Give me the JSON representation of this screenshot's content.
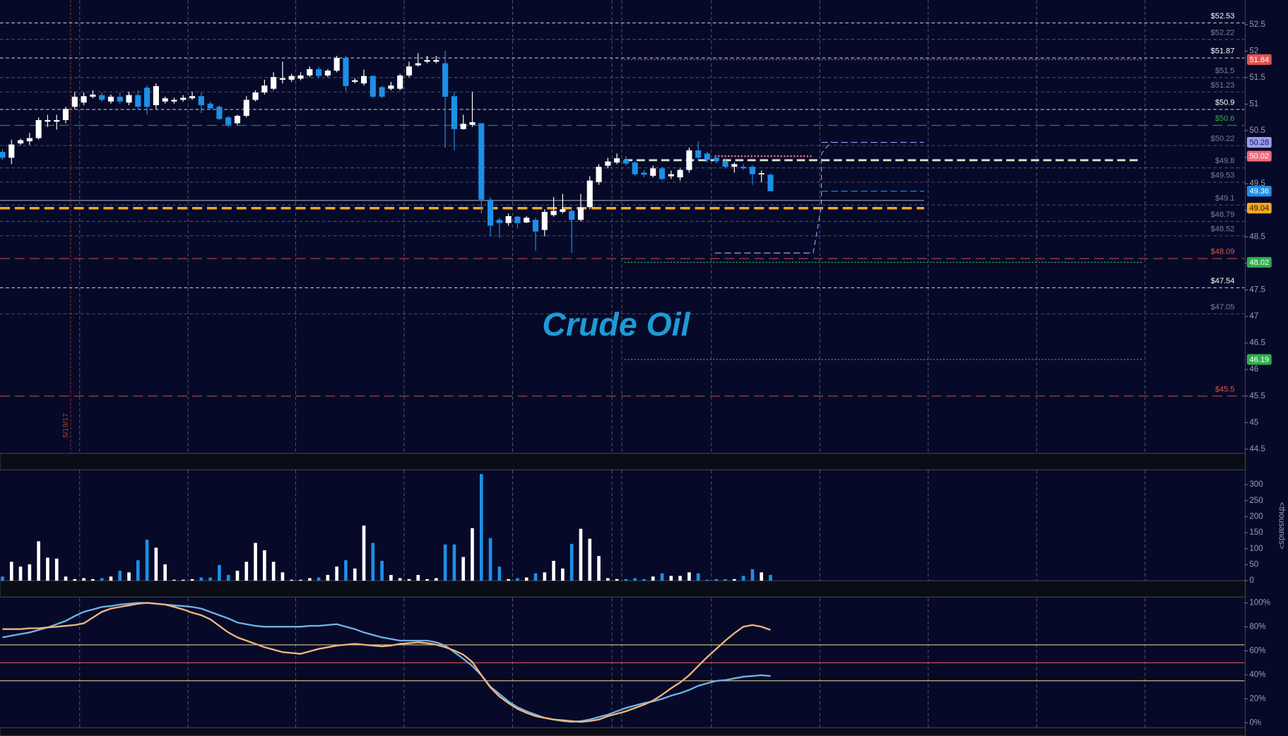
{
  "chart_data": [
    {
      "type": "candlestick",
      "title": "Crude Oil",
      "annotation": "5/19/17",
      "categories": [
        null,
        null,
        null,
        null,
        null,
        null,
        null,
        null,
        null,
        null,
        null,
        null,
        null,
        null,
        null,
        null,
        null,
        null,
        null,
        null,
        null,
        null,
        null,
        null,
        null,
        null,
        null,
        null,
        null,
        null,
        null,
        null,
        null,
        null,
        null,
        null,
        null,
        null,
        null,
        null,
        null,
        null,
        null,
        null,
        null,
        null,
        null,
        null,
        null,
        null,
        null,
        null,
        null,
        null,
        null,
        null,
        null,
        null,
        null,
        null,
        null,
        null,
        null,
        null,
        null,
        null,
        null,
        null,
        null,
        null,
        null,
        null,
        null,
        null,
        null,
        null,
        null,
        null,
        null,
        null,
        null,
        null,
        null,
        null,
        null,
        null
      ],
      "open": [
        50.1,
        49.99,
        50.26,
        50.3,
        50.36,
        50.67,
        50.67,
        50.7,
        50.95,
        51.03,
        51.14,
        51.17,
        51.05,
        51.14,
        51.03,
        51.17,
        51.31,
        50.98,
        51.05,
        51.05,
        51.08,
        51.11,
        51.15,
        51.01,
        50.95,
        50.75,
        50.64,
        50.78,
        51.08,
        51.22,
        51.29,
        51.46,
        51.46,
        51.48,
        51.54,
        51.66,
        51.54,
        51.63,
        51.87,
        51.42,
        51.39,
        51.53,
        51.32,
        51.29,
        51.29,
        51.54,
        51.73,
        51.8,
        51.8,
        51.77,
        51.15,
        50.53,
        50.61,
        50.64,
        49.2,
        48.82,
        48.76,
        48.88,
        48.77,
        48.82,
        48.63,
        48.91,
        48.97,
        48.99,
        48.82,
        49.06,
        49.53,
        49.84,
        49.9,
        49.95,
        49.9,
        49.71,
        49.65,
        49.79,
        49.64,
        49.62,
        49.76,
        50.13,
        50.07,
        49.99,
        49.93,
        49.82,
        49.82,
        49.82,
        49.68,
        49.67
      ],
      "high": [
        50.15,
        50.33,
        50.35,
        50.46,
        50.75,
        50.8,
        50.8,
        50.95,
        51.23,
        51.22,
        51.26,
        51.22,
        51.18,
        51.22,
        51.23,
        51.26,
        51.35,
        51.39,
        51.14,
        51.12,
        51.17,
        51.23,
        51.22,
        51.05,
        50.98,
        50.78,
        50.8,
        51.15,
        51.26,
        51.46,
        51.6,
        51.8,
        51.57,
        51.6,
        51.71,
        51.71,
        51.66,
        51.91,
        51.91,
        51.49,
        51.65,
        51.54,
        51.35,
        51.42,
        51.57,
        51.8,
        51.96,
        51.91,
        51.91,
        52.0,
        51.23,
        50.8,
        51.23,
        50.64,
        49.25,
        48.86,
        48.94,
        48.89,
        48.89,
        48.86,
        49.02,
        49.25,
        49.31,
        49.02,
        49.31,
        49.64,
        49.87,
        49.99,
        50.07,
        50.02,
        49.93,
        49.76,
        49.84,
        49.82,
        49.75,
        49.79,
        50.18,
        50.3,
        50.1,
        50.02,
        49.98,
        49.9,
        49.87,
        49.85,
        49.75,
        49.7
      ],
      "low": [
        49.95,
        49.87,
        50.23,
        50.23,
        50.33,
        50.57,
        50.52,
        50.64,
        50.91,
        50.98,
        51.11,
        51.05,
        51.01,
        51.01,
        50.98,
        50.91,
        50.8,
        50.91,
        51.01,
        51.01,
        51.05,
        51.08,
        50.83,
        50.91,
        50.7,
        50.57,
        50.61,
        50.75,
        51.05,
        51.18,
        51.26,
        51.39,
        51.42,
        51.45,
        51.51,
        51.49,
        51.51,
        51.6,
        51.25,
        51.39,
        51.35,
        51.11,
        51.11,
        51.26,
        51.26,
        51.51,
        51.71,
        51.77,
        51.77,
        50.18,
        50.13,
        50.52,
        50.57,
        48.94,
        48.51,
        48.48,
        48.71,
        48.66,
        48.76,
        48.24,
        48.51,
        48.88,
        48.94,
        48.2,
        48.79,
        49.02,
        49.48,
        49.79,
        49.87,
        49.84,
        49.65,
        49.62,
        49.62,
        49.56,
        49.59,
        49.56,
        49.71,
        49.95,
        49.9,
        49.88,
        49.79,
        49.71,
        49.76,
        49.48,
        49.53,
        49.36
      ],
      "close": [
        49.99,
        50.24,
        50.32,
        50.36,
        50.7,
        50.7,
        50.7,
        50.91,
        51.14,
        51.15,
        51.18,
        51.08,
        51.14,
        51.05,
        51.17,
        50.95,
        50.95,
        51.34,
        51.11,
        51.08,
        51.12,
        51.15,
        50.98,
        50.92,
        50.72,
        50.61,
        50.78,
        51.08,
        51.22,
        51.35,
        51.51,
        51.49,
        51.53,
        51.54,
        51.66,
        51.53,
        51.63,
        51.87,
        51.34,
        51.45,
        51.53,
        51.14,
        51.14,
        51.35,
        51.54,
        51.71,
        51.77,
        51.83,
        51.83,
        51.14,
        50.53,
        50.63,
        50.66,
        49.2,
        48.71,
        48.76,
        48.89,
        48.76,
        48.86,
        48.6,
        48.97,
        48.99,
        49.02,
        48.82,
        49.05,
        49.56,
        49.82,
        49.92,
        49.98,
        49.88,
        49.68,
        49.67,
        49.79,
        49.59,
        49.68,
        49.76,
        50.13,
        49.99,
        49.95,
        49.93,
        49.82,
        49.87,
        49.79,
        49.68,
        49.7,
        49.36
      ],
      "up_color": "#ffffff",
      "down_color": "#1e8fe6",
      "ylim": [
        44.42,
        52.96
      ],
      "yticks": [
        44.5,
        45,
        45.5,
        46,
        46.5,
        47,
        47.5,
        48,
        48.5,
        49,
        49.5,
        50,
        50.5,
        51,
        51.5,
        52,
        52.5
      ],
      "grid": true,
      "levels": [
        {
          "value": 52.53,
          "label": "$52.53",
          "color": "#ffffff"
        },
        {
          "value": 52.22,
          "label": "$52.22",
          "color": "#7c7f93"
        },
        {
          "value": 51.87,
          "label": "$51.87",
          "color": "#ffffff"
        },
        {
          "value": 51.5,
          "label": "$51.5",
          "color": "#7c7f93"
        },
        {
          "value": 51.23,
          "label": "$51.23",
          "color": "#7c7f93"
        },
        {
          "value": 50.9,
          "label": "$50.9",
          "color": "#ffffff"
        },
        {
          "value": 50.6,
          "label": "$50.6",
          "color": "#2fae4e"
        },
        {
          "value": 50.22,
          "label": "$50.22",
          "color": "#7c7f93"
        },
        {
          "value": 49.8,
          "label": "$49.8",
          "color": "#7c7f93"
        },
        {
          "value": 49.53,
          "label": "$49.53",
          "color": "#7c7f93"
        },
        {
          "value": 49.1,
          "label": "$49.1",
          "color": "#7c7f93"
        },
        {
          "value": 48.79,
          "label": "$48.79",
          "color": "#7c7f93"
        },
        {
          "value": 48.52,
          "label": "$48.52",
          "color": "#7c7f93"
        },
        {
          "value": 48.09,
          "label": "$48.09",
          "color": "#e0534f"
        },
        {
          "value": 47.54,
          "label": "$47.54",
          "color": "#ffffff"
        },
        {
          "value": 47.05,
          "label": "$47.05",
          "color": "#7c7f93"
        },
        {
          "value": 45.5,
          "label": "$45.5",
          "color": "#e0534f"
        }
      ],
      "markers": [
        {
          "value": 51.84,
          "color": "#e0534f",
          "text_color": "#ffffff"
        },
        {
          "value": 50.28,
          "color": "#9a9cf0",
          "text_color": "#1a1c40"
        },
        {
          "value": 50.02,
          "color": "#f06a78",
          "text_color": "#ffffff"
        },
        {
          "value": 49.36,
          "color": "#1e8fe6",
          "text_color": "#ffffff"
        },
        {
          "value": 49.04,
          "color": "#f5a623",
          "text_color": "#1a1a1a"
        },
        {
          "value": 48.02,
          "color": "#2fae4e",
          "text_color": "#ffffff"
        },
        {
          "value": 46.19,
          "color": "#2fae4e",
          "text_color": "#ffffff"
        }
      ]
    },
    {
      "type": "bar",
      "y_label": "<thousands>",
      "categories": [
        null,
        null,
        null,
        null,
        null,
        null,
        null,
        null,
        null,
        null,
        null,
        null,
        null,
        null,
        null,
        null,
        null,
        null,
        null,
        null,
        null,
        null,
        null,
        null,
        null,
        null,
        null,
        null,
        null,
        null,
        null,
        null,
        null,
        null,
        null,
        null,
        null,
        null,
        null,
        null,
        null,
        null,
        null,
        null,
        null,
        null,
        null,
        null,
        null,
        null,
        null,
        null,
        null,
        null,
        null,
        null,
        null,
        null,
        null,
        null,
        null,
        null,
        null,
        null,
        null,
        null,
        null,
        null,
        null,
        null,
        null,
        null,
        null,
        null,
        null,
        null,
        null,
        null,
        null,
        null,
        null,
        null,
        null,
        null,
        null,
        null
      ],
      "values": [
        13,
        59,
        44,
        51,
        123,
        72,
        69,
        13,
        5,
        8,
        5,
        8,
        13,
        31,
        26,
        64,
        128,
        103,
        51,
        3,
        3,
        5,
        10,
        10,
        49,
        18,
        31,
        59,
        118,
        95,
        59,
        26,
        3,
        3,
        8,
        10,
        18,
        44,
        64,
        38,
        172,
        118,
        62,
        18,
        8,
        5,
        18,
        5,
        8,
        113,
        113,
        74,
        164,
        333,
        133,
        44,
        5,
        8,
        10,
        23,
        26,
        62,
        38,
        115,
        162,
        131,
        77,
        8,
        5,
        5,
        8,
        5,
        13,
        23,
        15,
        15,
        26,
        23,
        3,
        5,
        5,
        5,
        15,
        36,
        26,
        18
      ],
      "ylim": [
        0,
        346
      ],
      "yticks": [
        0,
        50,
        100,
        150,
        200,
        250,
        300
      ]
    },
    {
      "type": "line",
      "categories": [
        null,
        null,
        null,
        null,
        null,
        null,
        null,
        null,
        null,
        null,
        null,
        null,
        null,
        null,
        null,
        null,
        null,
        null,
        null,
        null,
        null,
        null,
        null,
        null,
        null,
        null,
        null,
        null,
        null,
        null,
        null,
        null,
        null,
        null,
        null,
        null,
        null,
        null,
        null,
        null,
        null,
        null,
        null,
        null,
        null,
        null,
        null,
        null,
        null,
        null,
        null,
        null,
        null,
        null,
        null,
        null,
        null,
        null,
        null,
        null,
        null,
        null,
        null,
        null,
        null,
        null,
        null,
        null,
        null,
        null,
        null,
        null,
        null,
        null,
        null,
        null,
        null,
        null,
        null,
        null,
        null,
        null,
        null,
        null,
        null,
        null
      ],
      "series": [
        {
          "color": "#6fb2e6",
          "values": [
            71.2,
            72.6,
            74.0,
            75.3,
            77.4,
            79.5,
            82.2,
            84.9,
            89.0,
            92.5,
            94.5,
            96.6,
            97.3,
            98.6,
            99.3,
            100,
            100,
            99.3,
            98.6,
            97.9,
            97.3,
            96.6,
            95.2,
            92.5,
            89.7,
            87.0,
            83.6,
            82.2,
            80.8,
            80.1,
            80.1,
            80.1,
            80.1,
            80.1,
            80.8,
            80.8,
            81.5,
            82.2,
            80.1,
            78.1,
            75.3,
            73.3,
            71.2,
            69.9,
            68.5,
            68.5,
            68.5,
            68.5,
            67.1,
            64.4,
            58.9,
            53.4,
            47.3,
            39.7,
            30.1,
            24.0,
            17.8,
            13.0,
            9.6,
            6.8,
            4.1,
            2.7,
            1.4,
            0.7,
            1.4,
            2.7,
            4.8,
            6.8,
            9.6,
            12.3,
            14.4,
            16.4,
            17.8,
            19.9,
            22.6,
            24.7,
            27.4,
            30.8,
            32.9,
            34.9,
            35.6,
            37.0,
            38.4,
            39.0,
            39.7,
            39.0
          ]
        },
        {
          "color": "#f2b47e",
          "values": [
            78.1,
            78.1,
            78.1,
            78.8,
            78.8,
            79.5,
            80.1,
            80.8,
            81.5,
            82.9,
            87.7,
            92.5,
            95.2,
            96.6,
            97.9,
            99.3,
            100,
            99.3,
            98.6,
            96.6,
            94.5,
            91.8,
            89.7,
            86.3,
            80.8,
            75.3,
            71.2,
            68.5,
            65.8,
            63.0,
            61.0,
            58.9,
            58.2,
            57.5,
            59.6,
            61.6,
            63.0,
            64.4,
            65.1,
            65.8,
            65.1,
            64.4,
            63.7,
            64.4,
            65.8,
            66.4,
            67.1,
            66.4,
            65.1,
            63.0,
            60.3,
            56.8,
            50.7,
            39.7,
            29.5,
            21.9,
            16.4,
            11.6,
            8.2,
            5.5,
            4.1,
            2.7,
            2.1,
            1.4,
            0.7,
            1.4,
            2.7,
            5.5,
            7.5,
            9.6,
            12.3,
            15.1,
            18.5,
            23.3,
            28.8,
            33.6,
            39.7,
            47.3,
            54.8,
            61.6,
            68.5,
            74.7,
            80.1,
            81.5,
            80.1,
            77.4
          ]
        }
      ],
      "ylim": [
        -4.1,
        104.1
      ],
      "yticks": [
        {
          "value": 0,
          "label": "0%"
        },
        {
          "value": 20,
          "label": "20%"
        },
        {
          "value": 40,
          "label": "40%"
        },
        {
          "value": 60,
          "label": "60%"
        },
        {
          "value": 80,
          "label": "80%"
        },
        {
          "value": 100,
          "label": "100%"
        }
      ],
      "levels": [
        {
          "value": 65,
          "color": "#d9c98c"
        },
        {
          "value": 50,
          "color": "#c9504c"
        },
        {
          "value": 35,
          "color": "#d9c98c"
        }
      ]
    }
  ]
}
